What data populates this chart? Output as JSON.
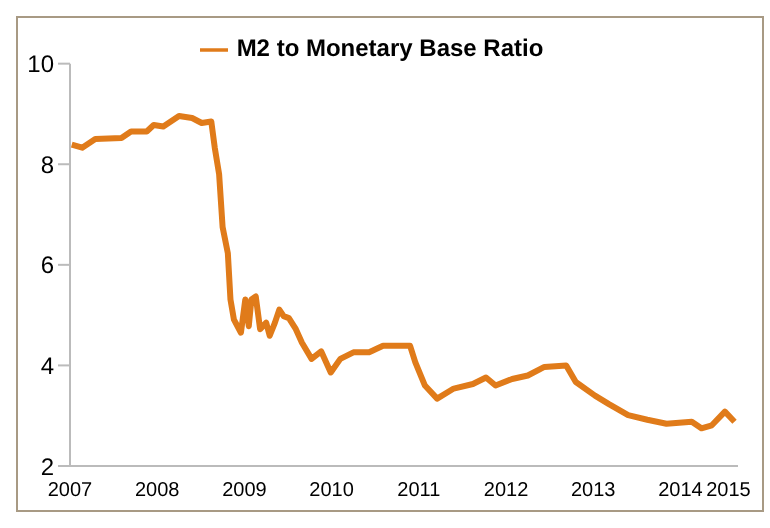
{
  "chart_data": {
    "type": "line",
    "legend": "top",
    "grid": false,
    "marker": "none",
    "line_style": "solid",
    "xlim": [
      2007,
      2014.66
    ],
    "xticks": [
      2007,
      2008,
      2009,
      2010,
      2011,
      2012,
      2013,
      2014,
      {
        "value": 2014.55,
        "label": "2015"
      }
    ],
    "ylim": [
      2,
      10
    ],
    "yticks": [
      2,
      4,
      6,
      8,
      10
    ],
    "x": [
      2007.02,
      2007.14,
      2007.29,
      2007.59,
      2007.7,
      2007.88,
      2007.96,
      2008.07,
      2008.25,
      2008.4,
      2008.51,
      2008.62,
      2008.66,
      2008.71,
      2008.75,
      2008.81,
      2008.84,
      2008.88,
      2008.96,
      2009.01,
      2009.05,
      2009.08,
      2009.13,
      2009.18,
      2009.25,
      2009.29,
      2009.35,
      2009.4,
      2009.45,
      2009.51,
      2009.59,
      2009.66,
      2009.77,
      2009.88,
      2009.99,
      2010.1,
      2010.25,
      2010.43,
      2010.59,
      2010.77,
      2010.9,
      2010.96,
      2011.07,
      2011.21,
      2011.4,
      2011.62,
      2011.77,
      2011.88,
      2012.07,
      2012.25,
      2012.44,
      2012.69,
      2012.8,
      2013.02,
      2013.18,
      2013.4,
      2013.62,
      2013.84,
      2014.13,
      2014.24,
      2014.36,
      2014.51,
      2014.62
    ],
    "series": [
      {
        "name": "M2 to Monetary Base Ratio",
        "color": "#e07b1a",
        "values": [
          8.39,
          8.33,
          8.5,
          8.52,
          8.65,
          8.65,
          8.78,
          8.75,
          8.96,
          8.92,
          8.82,
          8.85,
          8.33,
          7.8,
          6.75,
          6.23,
          5.31,
          4.91,
          4.65,
          5.31,
          4.78,
          5.31,
          5.37,
          4.72,
          4.85,
          4.59,
          4.85,
          5.11,
          4.98,
          4.94,
          4.72,
          4.45,
          4.13,
          4.28,
          3.86,
          4.13,
          4.26,
          4.26,
          4.39,
          4.39,
          4.39,
          4.06,
          3.6,
          3.34,
          3.54,
          3.63,
          3.76,
          3.6,
          3.73,
          3.8,
          3.97,
          4.0,
          3.67,
          3.4,
          3.23,
          3.01,
          2.92,
          2.84,
          2.88,
          2.75,
          2.81,
          3.08,
          2.88
        ]
      }
    ]
  }
}
